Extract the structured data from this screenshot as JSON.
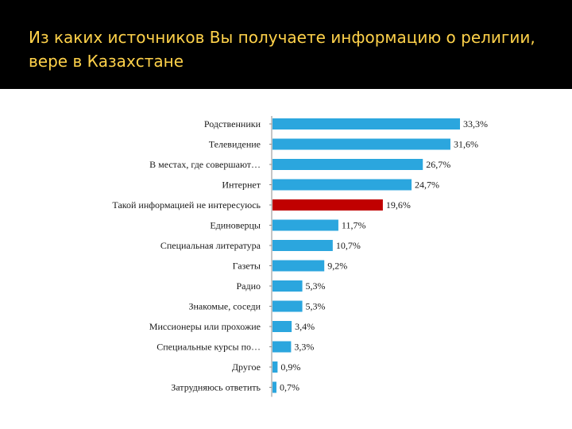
{
  "slide": {
    "title": "Из каких источников Вы получаете информацию о религии, вере в Казахстане"
  },
  "colors": {
    "bar": "#2BA6DE",
    "highlight": "#C00000",
    "axis": "#8C8C8C"
  },
  "chart_data": {
    "type": "bar",
    "orientation": "horizontal",
    "title": "Из каких источников Вы получаете информацию о религии, вере в Казахстане",
    "xlabel": "",
    "ylabel": "",
    "xlim": [
      0,
      33.3
    ],
    "grid": false,
    "highlight_index": 4,
    "categories": [
      "Родственники",
      "Телевидение",
      "В местах, где совершают…",
      "Интернет",
      "Такой информацией не интересуюсь",
      "Единоверцы",
      "Специальная литература",
      "Газеты",
      "Радио",
      "Знакомые, соседи",
      "Миссионеры или прохожие",
      "Специальные курсы по…",
      "Другое",
      "Затрудняюсь ответить"
    ],
    "values": [
      33.3,
      31.6,
      26.7,
      24.7,
      19.6,
      11.7,
      10.7,
      9.2,
      5.3,
      5.3,
      3.4,
      3.3,
      0.9,
      0.7
    ],
    "labels": [
      "33,3%",
      "31,6%",
      "26,7%",
      "24,7%",
      "19,6%",
      "11,7%",
      "10,7%",
      "9,2%",
      "5,3%",
      "5,3%",
      "3,4%",
      "3,3%",
      "0,9%",
      "0,7%"
    ]
  }
}
